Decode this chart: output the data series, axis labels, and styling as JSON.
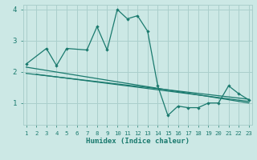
{
  "xlabel": "Humidex (Indice chaleur)",
  "bg_color": "#cce8e5",
  "grid_color": "#aacfcc",
  "line_color": "#1a7a6e",
  "x_min": 1,
  "x_max": 23,
  "y_min": 0.3,
  "y_max": 4.15,
  "yticks": [
    1,
    2,
    3,
    4
  ],
  "xticks": [
    1,
    2,
    3,
    4,
    5,
    6,
    7,
    8,
    9,
    10,
    11,
    12,
    13,
    14,
    15,
    16,
    17,
    18,
    19,
    20,
    21,
    22,
    23
  ],
  "series1_x": [
    1,
    3,
    4,
    5,
    7,
    8,
    9,
    10,
    11,
    12,
    13,
    14,
    15,
    16,
    17,
    18,
    19,
    20,
    21,
    22,
    23
  ],
  "series1_y": [
    2.25,
    2.75,
    2.2,
    2.75,
    2.7,
    3.45,
    2.7,
    4.0,
    3.7,
    3.8,
    3.3,
    1.55,
    0.6,
    0.9,
    0.85,
    0.85,
    1.0,
    1.0,
    1.55,
    1.3,
    1.1
  ],
  "series2_x": [
    2,
    23
  ],
  "series2_y": [
    1.92,
    1.05
  ],
  "series3_x": [
    1,
    23
  ],
  "series3_y": [
    2.15,
    1.0
  ],
  "series4_x": [
    1,
    23
  ],
  "series4_y": [
    1.95,
    1.12
  ]
}
